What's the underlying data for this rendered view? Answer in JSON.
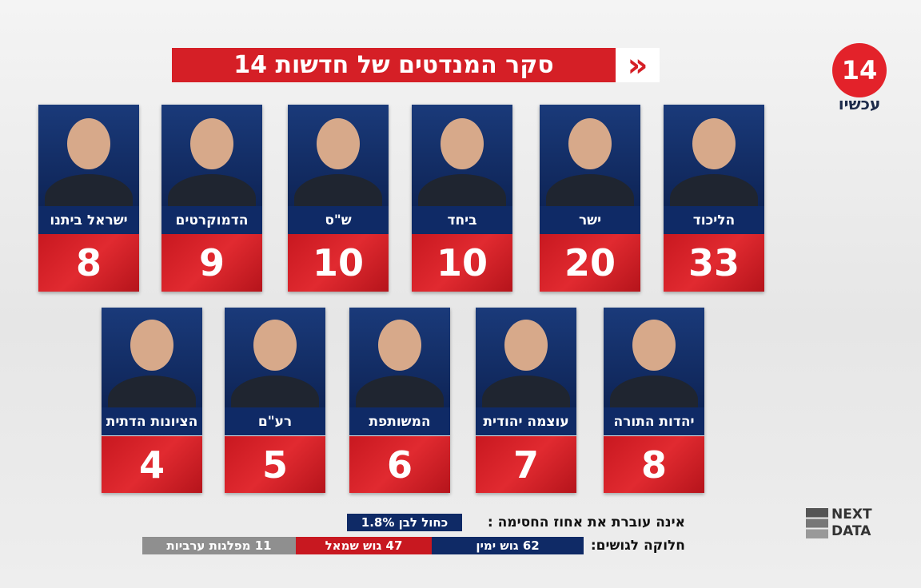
{
  "header": {
    "title": "סקר המנדטים של חדשות 14",
    "chevron": "»"
  },
  "logo": {
    "number": "14",
    "name": "עכשיו"
  },
  "parties": [
    {
      "name": "הליכוד",
      "seats": 33
    },
    {
      "name": "ישר",
      "seats": 20
    },
    {
      "name": "ביחד",
      "seats": 10
    },
    {
      "name": "ש\"ס",
      "seats": 10
    },
    {
      "name": "הדמוקרטים",
      "seats": 9
    },
    {
      "name": "ישראל ביתנו",
      "seats": 8
    },
    {
      "name": "יהדות התורה",
      "seats": 8
    },
    {
      "name": "עוצמה יהודית",
      "seats": 7
    },
    {
      "name": "המשותפת",
      "seats": 6
    },
    {
      "name": "רע\"ם",
      "seats": 5
    },
    {
      "name": "הציונות הדתית",
      "seats": 4
    }
  ],
  "footer": {
    "threshold_label": "אינה עוברת את אחוז החסימה :",
    "threshold_party": "כחול לבן 1.8%",
    "blocs_label": "חלוקה לגושים:",
    "blocs": [
      "62 גוש ימין",
      "47 גוש שמאל",
      "11 מפלגות ערביות"
    ]
  },
  "brand": {
    "line1": "NEXT",
    "line2": "DATA"
  }
}
